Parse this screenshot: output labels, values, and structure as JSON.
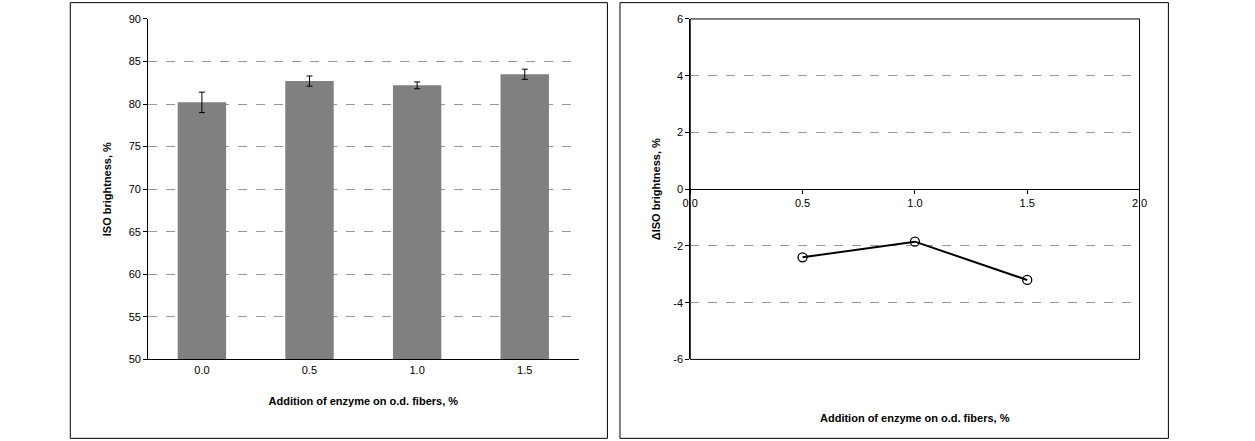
{
  "chart_data": [
    {
      "type": "bar",
      "categories": [
        "0.0",
        "0.5",
        "1.0",
        "1.5"
      ],
      "values": [
        80.2,
        82.7,
        82.2,
        83.5
      ],
      "errors": [
        1.2,
        0.6,
        0.4,
        0.6
      ],
      "color": "#808080",
      "x_label": "Addition of enzyme on o.d. fibers, %",
      "y_label": "ISO brightness, %",
      "ylim": [
        50,
        90
      ],
      "yticks": [
        50,
        55,
        60,
        65,
        70,
        75,
        80,
        85,
        90
      ],
      "grid": true
    },
    {
      "type": "line",
      "x": [
        0.5,
        1.0,
        1.5
      ],
      "values": [
        -2.4,
        -1.85,
        -3.2
      ],
      "color": "#000000",
      "marker": "circle-open",
      "x_label": "Addition of enzyme on o.d. fibers, %",
      "y_label": "ΔISO brightness, %",
      "xlim": [
        0,
        2
      ],
      "xticks": [
        {
          "value": 0,
          "label": "0.0"
        },
        {
          "value": 0.5,
          "label": "0.5"
        },
        {
          "value": 1,
          "label": "1.0"
        },
        {
          "value": 1.5,
          "label": "1.5"
        },
        {
          "value": 2,
          "label": "2.0"
        }
      ],
      "ylim": [
        -6,
        6
      ],
      "yticks": [
        -6,
        -4,
        -2,
        0,
        2,
        4,
        6
      ],
      "grid": true
    }
  ]
}
